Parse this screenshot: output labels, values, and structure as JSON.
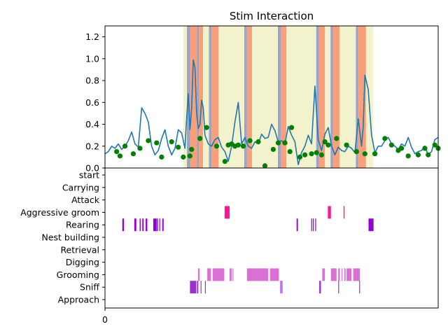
{
  "chart_data": [
    {
      "type": "line",
      "title": "Stim Interaction",
      "xlabel": "",
      "ylabel": "",
      "xlim": [
        0,
        1000
      ],
      "ylim": [
        0,
        1.3
      ],
      "yticks": [
        0.0,
        0.2,
        0.4,
        0.6,
        0.8,
        1.0,
        1.2
      ],
      "ytick_labels": [
        "0.0",
        "0.2",
        "0.4",
        "0.6",
        "0.8",
        "1.0",
        "1.2"
      ],
      "grid": false,
      "colors": {
        "line": "#1f77b4",
        "markers": "#008000",
        "stim_window": "#f2f2cc",
        "stim_on": "#f7a07a",
        "stim_edge": "#9aa3cc"
      },
      "shaded_window": [
        235,
        805
      ],
      "stim_pulses": [
        {
          "edge": [
            246,
            256
          ],
          "on": [
            256,
            276
          ]
        },
        {
          "edge": [
            276,
            282
          ],
          "on": [
            282,
            294
          ]
        },
        {
          "edge": [
            312,
            320
          ],
          "on": [
            320,
            341
          ]
        },
        {
          "edge": [
            418,
            426
          ],
          "on": [
            426,
            441
          ]
        },
        {
          "edge": [
            519,
            528
          ],
          "on": [
            528,
            544
          ]
        },
        {
          "edge": [
            634,
            642
          ],
          "on": [
            642,
            660
          ]
        },
        {
          "edge": [
            677,
            684
          ],
          "on": [
            684,
            704
          ]
        },
        {
          "edge": [
            753,
            760
          ],
          "on": [
            760,
            783
          ]
        }
      ],
      "series": [
        {
          "x": [
            0,
            10,
            20,
            30,
            40,
            50,
            60,
            70,
            80,
            90,
            100,
            110,
            120,
            130,
            140,
            150,
            160,
            170,
            180,
            190,
            200,
            210,
            220,
            230,
            240,
            245,
            250,
            255,
            260,
            265,
            270,
            275,
            280,
            285,
            290,
            295,
            300,
            310,
            320,
            330,
            340,
            350,
            360,
            370,
            380,
            390,
            400,
            410,
            420,
            430,
            440,
            450,
            460,
            470,
            480,
            490,
            500,
            510,
            520,
            530,
            540,
            550,
            560,
            570,
            580,
            590,
            600,
            610,
            620,
            630,
            640,
            650,
            660,
            670,
            680,
            690,
            700,
            710,
            720,
            730,
            740,
            750,
            760,
            770,
            775,
            780,
            790,
            800,
            810,
            820,
            830,
            840,
            850,
            860,
            870,
            880,
            890,
            900,
            910,
            920,
            930,
            940,
            950,
            960,
            970,
            980,
            990,
            1000
          ],
          "values": [
            0.13,
            0.15,
            0.2,
            0.18,
            0.22,
            0.17,
            0.2,
            0.25,
            0.33,
            0.22,
            0.19,
            0.55,
            0.5,
            0.42,
            0.2,
            0.12,
            0.16,
            0.27,
            0.35,
            0.2,
            0.12,
            0.18,
            0.35,
            0.32,
            0.18,
            0.45,
            0.68,
            0.35,
            0.55,
            0.99,
            0.92,
            0.5,
            0.36,
            0.4,
            0.62,
            0.55,
            0.3,
            0.22,
            0.2,
            0.26,
            0.28,
            0.19,
            0.15,
            0.06,
            0.2,
            0.42,
            0.6,
            0.22,
            0.28,
            0.2,
            0.18,
            0.24,
            0.22,
            0.31,
            0.27,
            0.28,
            0.4,
            0.34,
            0.24,
            0.25,
            0.22,
            0.38,
            0.3,
            0.24,
            0.03,
            0.14,
            0.2,
            0.3,
            0.22,
            0.75,
            0.26,
            0.16,
            0.31,
            0.37,
            0.2,
            0.12,
            0.19,
            0.16,
            0.15,
            0.2,
            0.18,
            0.14,
            0.45,
            0.2,
            0.38,
            0.85,
            0.72,
            0.3,
            0.14,
            0.2,
            0.2,
            0.25,
            0.28,
            0.22,
            0.2,
            0.17,
            0.22,
            0.2,
            0.28,
            0.19,
            0.13,
            0.15,
            0.16,
            0.2,
            0.12,
            0.15,
            0.26,
            0.28
          ]
        }
      ],
      "markers": {
        "x": [
          35,
          45,
          60,
          85,
          105,
          130,
          155,
          170,
          200,
          220,
          235,
          255,
          260,
          285,
          305,
          335,
          360,
          370,
          380,
          390,
          400,
          415,
          435,
          460,
          480,
          505,
          520,
          540,
          555,
          560,
          585,
          600,
          620,
          635,
          650,
          660,
          670,
          695,
          725,
          755,
          780,
          810,
          840,
          860,
          880,
          890,
          910,
          940,
          960,
          970,
          990,
          1000
        ],
        "y": [
          0.15,
          0.11,
          0.2,
          0.13,
          0.18,
          0.25,
          0.23,
          0.1,
          0.24,
          0.19,
          0.1,
          0.11,
          0.17,
          0.27,
          0.37,
          0.2,
          0.06,
          0.21,
          0.22,
          0.2,
          0.21,
          0.2,
          0.25,
          0.24,
          0.02,
          0.17,
          0.23,
          0.23,
          0.15,
          0.37,
          0.1,
          0.12,
          0.13,
          0.14,
          0.12,
          0.24,
          0.21,
          0.27,
          0.21,
          0.15,
          0.13,
          0.13,
          0.27,
          0.21,
          0.16,
          0.18,
          0.11,
          0.12,
          0.18,
          0.12,
          0.21,
          0.18
        ]
      }
    },
    {
      "type": "timeline",
      "title": "",
      "xlim": [
        0,
        1000
      ],
      "xticks": [
        0
      ],
      "xtick_labels": [
        "0"
      ],
      "categories": [
        "start",
        "Carrying",
        "Attack",
        "Aggressive groom",
        "Rearing",
        "Nest building",
        "Retrieval",
        "Digging",
        "Grooming",
        "Sniff",
        "Approach"
      ],
      "colors": {
        "Aggressive groom": "#ff1493",
        "Rearing": "#9400d3",
        "Grooming": "#da70d6",
        "Sniff": "#9932cc"
      },
      "events": [
        {
          "category": "Aggressive groom",
          "intervals": [
            [
              359,
              374
            ],
            [
              669,
              678
            ],
            [
              716,
              719
            ]
          ]
        },
        {
          "category": "Rearing",
          "intervals": [
            [
              52,
              57
            ],
            [
              88,
              94
            ],
            [
              104,
              107
            ],
            [
              112,
              116
            ],
            [
              122,
              127
            ],
            [
              145,
              155
            ],
            [
              156,
              159
            ],
            [
              163,
              165
            ],
            [
              172,
              176
            ],
            [
              575,
              579
            ],
            [
              619,
              621
            ],
            [
              624,
              626
            ],
            [
              631,
              633
            ],
            [
              791,
              806
            ]
          ]
        },
        {
          "category": "Grooming",
          "intervals": [
            [
              279,
              284
            ],
            [
              307,
              318
            ],
            [
              323,
              358
            ],
            [
              374,
              380
            ],
            [
              383,
              385
            ],
            [
              426,
              490
            ],
            [
              495,
              522
            ],
            [
              652,
              660
            ],
            [
              678,
              695
            ],
            [
              700,
              705
            ],
            [
              710,
              712
            ],
            [
              718,
              722
            ],
            [
              725,
              740
            ],
            [
              745,
              765
            ]
          ]
        },
        {
          "category": "Sniff",
          "intervals": [
            [
              255,
              274
            ],
            [
              276,
              280
            ],
            [
              287,
              289
            ],
            [
              300,
              302
            ],
            [
              526,
              528
            ],
            [
              530,
              532
            ],
            [
              643,
              648
            ],
            [
              700,
              702
            ],
            [
              763,
              765
            ]
          ]
        }
      ]
    }
  ]
}
